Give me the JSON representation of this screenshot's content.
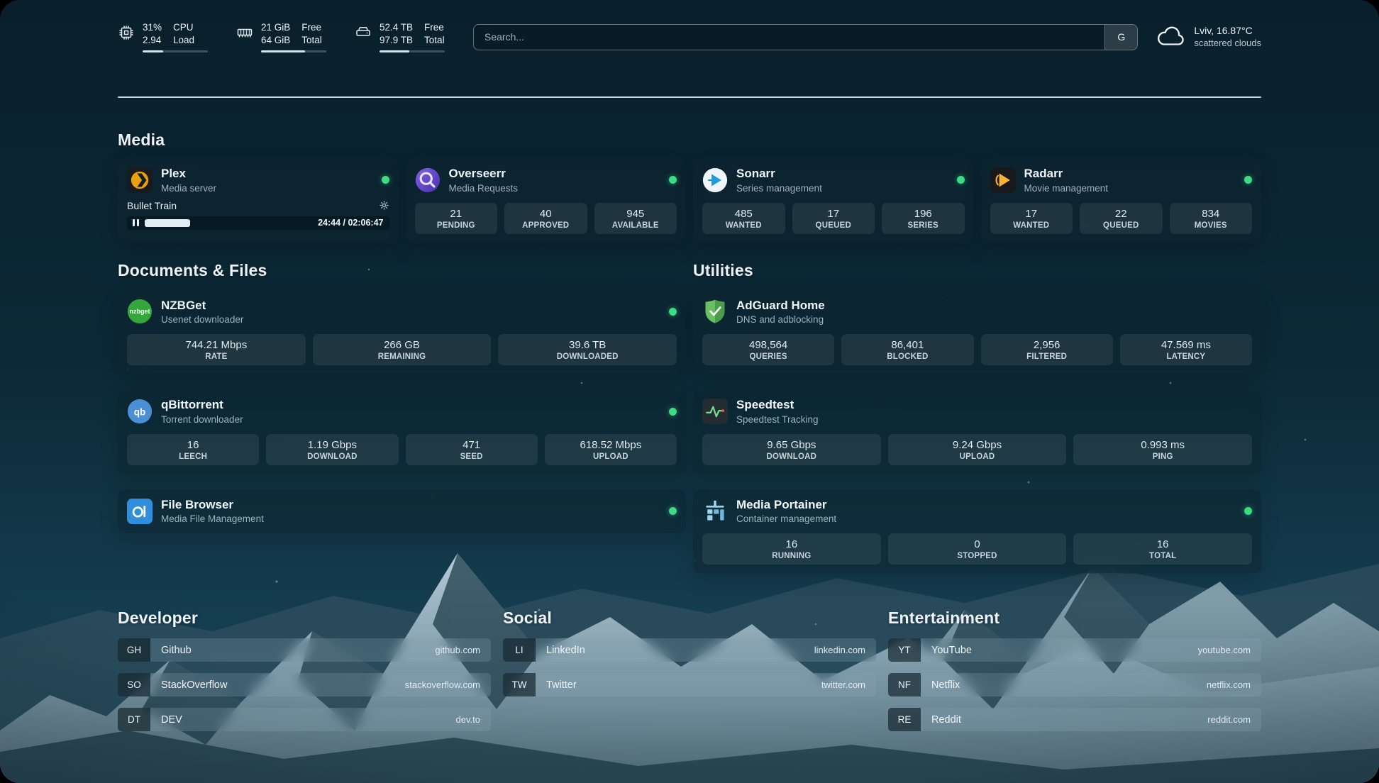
{
  "colors": {
    "status_online": "#3ddc84"
  },
  "topbar": {
    "resources": [
      {
        "id": "cpu",
        "icon": "cpu-icon",
        "values": [
          "31%",
          "2.94"
        ],
        "labels": [
          "CPU",
          "Load"
        ],
        "percent": 31
      },
      {
        "id": "memory",
        "icon": "memory-icon",
        "values": [
          "21 GiB",
          "64 GiB"
        ],
        "labels": [
          "Free",
          "Total"
        ],
        "percent": 67
      },
      {
        "id": "disk",
        "icon": "disk-icon",
        "values": [
          "52.4 TB",
          "97.9 TB"
        ],
        "labels": [
          "Free",
          "Total"
        ],
        "percent": 46
      }
    ],
    "search": {
      "placeholder": "Search...",
      "provider_button": "G"
    },
    "weather": {
      "icon": "cloud-icon",
      "location": "Lviv, 16.87°C",
      "condition": "scattered clouds"
    }
  },
  "groups": {
    "media": {
      "title": "Media",
      "services": [
        {
          "name": "Plex",
          "description": "Media server",
          "icon": "plex-icon",
          "online": true,
          "now_playing": {
            "title": "Bullet Train",
            "time": "24:44 / 02:06:47",
            "progress_percent": 19
          }
        },
        {
          "name": "Overseerr",
          "description": "Media Requests",
          "icon": "overseerr-icon",
          "online": true,
          "stats": [
            {
              "value": "21",
              "label": "PENDING"
            },
            {
              "value": "40",
              "label": "APPROVED"
            },
            {
              "value": "945",
              "label": "AVAILABLE"
            }
          ]
        },
        {
          "name": "Sonarr",
          "description": "Series management",
          "icon": "sonarr-icon",
          "online": true,
          "stats": [
            {
              "value": "485",
              "label": "WANTED"
            },
            {
              "value": "17",
              "label": "QUEUED"
            },
            {
              "value": "196",
              "label": "SERIES"
            }
          ]
        },
        {
          "name": "Radarr",
          "description": "Movie management",
          "icon": "radarr-icon",
          "online": true,
          "stats": [
            {
              "value": "17",
              "label": "WANTED"
            },
            {
              "value": "22",
              "label": "QUEUED"
            },
            {
              "value": "834",
              "label": "MOVIES"
            }
          ]
        }
      ]
    },
    "documents": {
      "title": "Documents & Files",
      "services": [
        {
          "name": "NZBGet",
          "description": "Usenet downloader",
          "icon": "nzbget-icon",
          "online": true,
          "stats": [
            {
              "value": "744.21 Mbps",
              "label": "RATE"
            },
            {
              "value": "266 GB",
              "label": "REMAINING"
            },
            {
              "value": "39.6 TB",
              "label": "DOWNLOADED"
            }
          ]
        },
        {
          "name": "qBittorrent",
          "description": "Torrent downloader",
          "icon": "qbittorrent-icon",
          "online": true,
          "stats": [
            {
              "value": "16",
              "label": "LEECH"
            },
            {
              "value": "1.19 Gbps",
              "label": "DOWNLOAD"
            },
            {
              "value": "471",
              "label": "SEED"
            },
            {
              "value": "618.52 Mbps",
              "label": "UPLOAD"
            }
          ]
        },
        {
          "name": "File Browser",
          "description": "Media File Management",
          "icon": "filebrowser-icon",
          "online": true,
          "stats": []
        }
      ]
    },
    "utilities": {
      "title": "Utilities",
      "services": [
        {
          "name": "AdGuard Home",
          "description": "DNS and adblocking",
          "icon": "adguard-icon",
          "online": false,
          "stats": [
            {
              "value": "498,564",
              "label": "QUERIES"
            },
            {
              "value": "86,401",
              "label": "BLOCKED"
            },
            {
              "value": "2,956",
              "label": "FILTERED"
            },
            {
              "value": "47.569 ms",
              "label": "LATENCY"
            }
          ]
        },
        {
          "name": "Speedtest",
          "description": "Speedtest Tracking",
          "icon": "speedtest-icon",
          "online": false,
          "stats": [
            {
              "value": "9.65 Gbps",
              "label": "DOWNLOAD"
            },
            {
              "value": "9.24 Gbps",
              "label": "UPLOAD"
            },
            {
              "value": "0.993 ms",
              "label": "PING"
            }
          ]
        },
        {
          "name": "Media Portainer",
          "description": "Container management",
          "icon": "portainer-icon",
          "online": true,
          "stats": [
            {
              "value": "16",
              "label": "RUNNING"
            },
            {
              "value": "0",
              "label": "STOPPED"
            },
            {
              "value": "16",
              "label": "TOTAL"
            }
          ]
        }
      ]
    }
  },
  "bookmarks": [
    {
      "title": "Developer",
      "items": [
        {
          "abbr": "GH",
          "name": "Github",
          "domain": "github.com"
        },
        {
          "abbr": "SO",
          "name": "StackOverflow",
          "domain": "stackoverflow.com"
        },
        {
          "abbr": "DT",
          "name": "DEV",
          "domain": "dev.to"
        }
      ]
    },
    {
      "title": "Social",
      "items": [
        {
          "abbr": "LI",
          "name": "LinkedIn",
          "domain": "linkedin.com"
        },
        {
          "abbr": "TW",
          "name": "Twitter",
          "domain": "twitter.com"
        }
      ]
    },
    {
      "title": "Entertainment",
      "items": [
        {
          "abbr": "YT",
          "name": "YouTube",
          "domain": "youtube.com"
        },
        {
          "abbr": "NF",
          "name": "Netflix",
          "domain": "netflix.com"
        },
        {
          "abbr": "RE",
          "name": "Reddit",
          "domain": "reddit.com"
        }
      ]
    }
  ]
}
